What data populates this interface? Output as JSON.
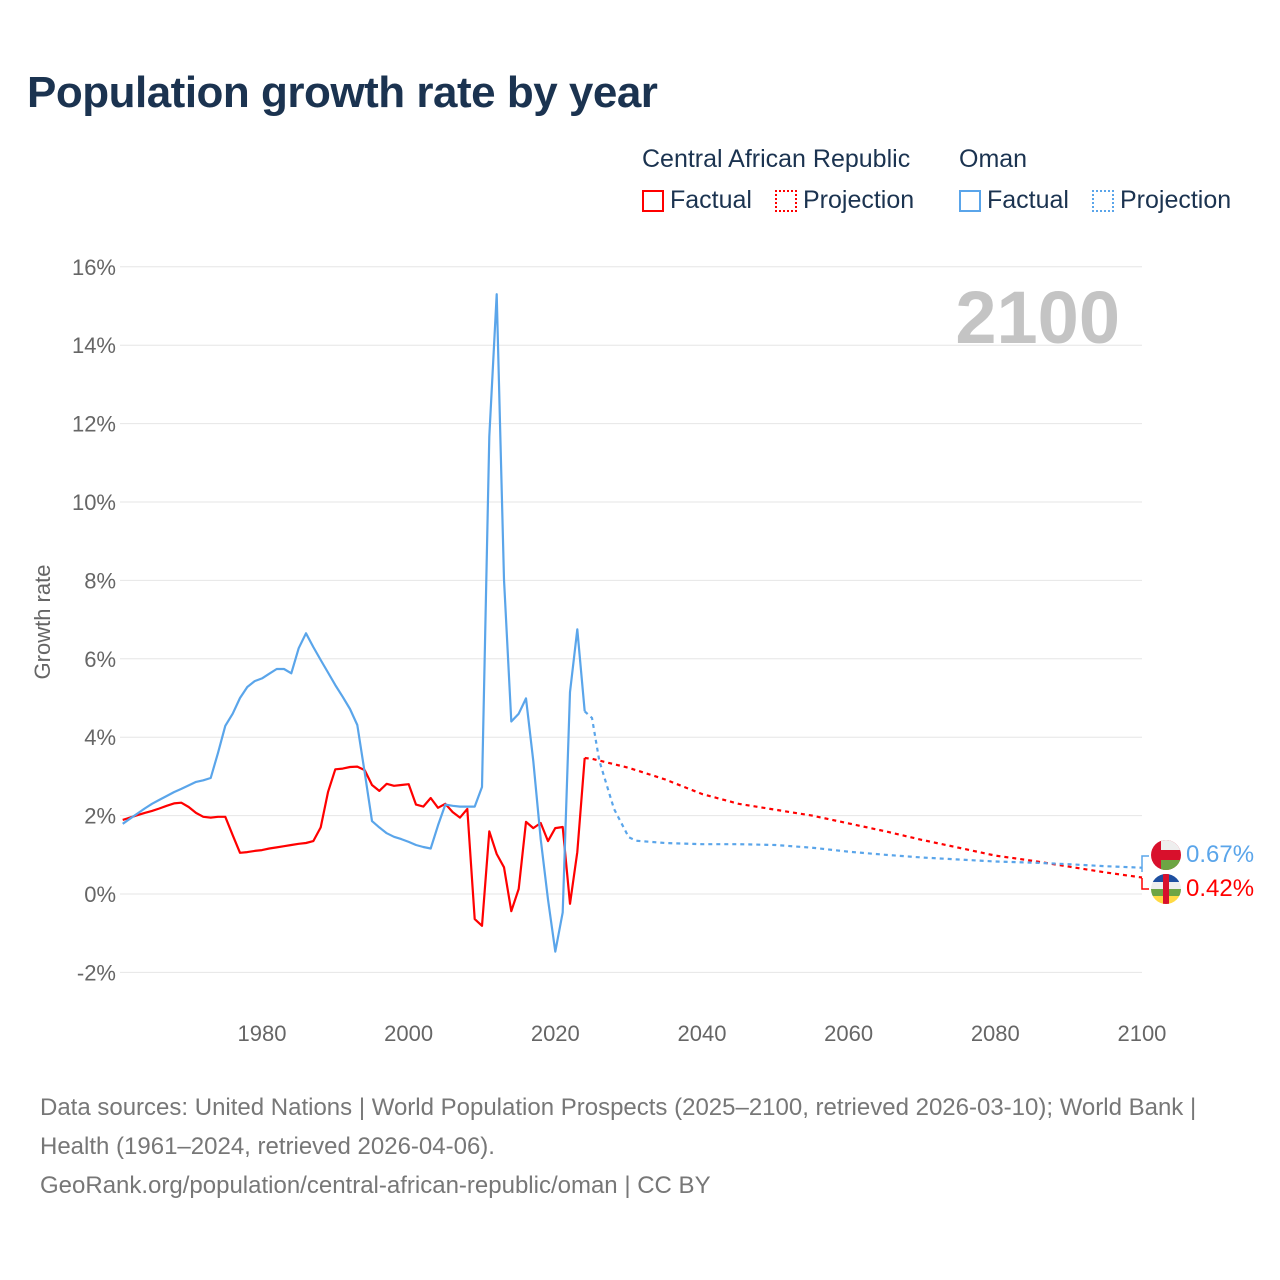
{
  "title": "Population growth rate by year",
  "legend": {
    "groups": [
      {
        "country": "Central African Republic",
        "factual": "Factual",
        "projection": "Projection",
        "color": "#ff0000"
      },
      {
        "country": "Oman",
        "factual": "Factual",
        "projection": "Projection",
        "color": "#5aa5ea"
      }
    ]
  },
  "year_watermark": "2100",
  "end_labels": {
    "oman": "0.67%",
    "car": "0.42%"
  },
  "footer": {
    "sources": "Data sources: United Nations | World Population Prospects (2025–2100, retrieved 2026-03-10); World Bank | Health (1961–2024, retrieved 2026-04-06).",
    "link": "GeoRank.org/population/central-african-republic/oman | CC BY"
  },
  "chart_data": {
    "type": "line",
    "title": "Population growth rate by year",
    "xlabel": "",
    "ylabel": "Growth rate",
    "xlim": [
      1961,
      2100
    ],
    "ylim": [
      -3,
      16.5
    ],
    "xticks": [
      1980,
      2000,
      2020,
      2040,
      2060,
      2080,
      2100
    ],
    "yticks": [
      -2,
      0,
      2,
      4,
      6,
      8,
      10,
      12,
      14,
      16
    ],
    "ytick_labels": [
      "-2%",
      "0%",
      "2%",
      "4%",
      "6%",
      "8%",
      "10%",
      "12%",
      "14%",
      "16%"
    ],
    "grid": true,
    "legend_position": "top-right",
    "series": [
      {
        "name": "Central African Republic",
        "color": "#ff0000",
        "factual": {
          "start_year": 1961,
          "values": [
            1.89,
            1.95,
            2.01,
            2.07,
            2.12,
            2.18,
            2.25,
            2.31,
            2.33,
            2.22,
            2.07,
            1.97,
            1.95,
            1.97,
            1.97,
            1.5,
            1.05,
            1.07,
            1.1,
            1.12,
            1.16,
            1.19,
            1.22,
            1.25,
            1.28,
            1.3,
            1.35,
            1.7,
            2.6,
            3.18,
            3.2,
            3.24,
            3.25,
            3.16,
            2.78,
            2.63,
            2.81,
            2.76,
            2.78,
            2.8,
            2.28,
            2.23,
            2.45,
            2.2,
            2.3,
            2.09,
            1.95,
            2.17,
            -0.64,
            -0.81,
            1.6,
            1.02,
            0.68,
            -0.44,
            0.13,
            1.84,
            1.68,
            1.81,
            1.35,
            1.68,
            1.71,
            -0.25,
            1.07,
            3.47
          ]
        },
        "projection": {
          "years": [
            2024,
            2025,
            2030,
            2035,
            2040,
            2045,
            2050,
            2055,
            2060,
            2065,
            2070,
            2075,
            2080,
            2085,
            2090,
            2095,
            2100
          ],
          "values": [
            3.47,
            3.45,
            3.22,
            2.92,
            2.55,
            2.3,
            2.15,
            2.0,
            1.8,
            1.6,
            1.38,
            1.18,
            0.98,
            0.85,
            0.7,
            0.55,
            0.42
          ]
        }
      },
      {
        "name": "Oman",
        "color": "#5aa5ea",
        "factual": {
          "start_year": 1961,
          "values": [
            1.79,
            1.92,
            2.05,
            2.18,
            2.3,
            2.4,
            2.5,
            2.6,
            2.68,
            2.77,
            2.86,
            2.9,
            2.96,
            3.6,
            4.29,
            4.6,
            5.0,
            5.28,
            5.43,
            5.5,
            5.62,
            5.74,
            5.74,
            5.63,
            6.27,
            6.65,
            6.3,
            5.97,
            5.65,
            5.33,
            5.03,
            4.72,
            4.31,
            3.1,
            1.86,
            1.7,
            1.55,
            1.46,
            1.4,
            1.33,
            1.25,
            1.2,
            1.16,
            1.75,
            2.28,
            2.25,
            2.23,
            2.23,
            2.23,
            2.73,
            11.67,
            15.3,
            8.02,
            4.4,
            4.6,
            4.99,
            3.39,
            1.4,
            -0.14,
            -1.47,
            -0.47,
            5.15,
            6.75,
            4.66
          ]
        },
        "projection": {
          "years": [
            2024,
            2025,
            2026,
            2028,
            2030,
            2031,
            2035,
            2040,
            2045,
            2050,
            2055,
            2060,
            2065,
            2070,
            2075,
            2080,
            2085,
            2090,
            2095,
            2100
          ],
          "values": [
            4.66,
            4.49,
            3.4,
            2.17,
            1.45,
            1.36,
            1.3,
            1.27,
            1.27,
            1.25,
            1.18,
            1.08,
            1.0,
            0.93,
            0.88,
            0.83,
            0.8,
            0.76,
            0.71,
            0.67
          ]
        }
      }
    ]
  }
}
